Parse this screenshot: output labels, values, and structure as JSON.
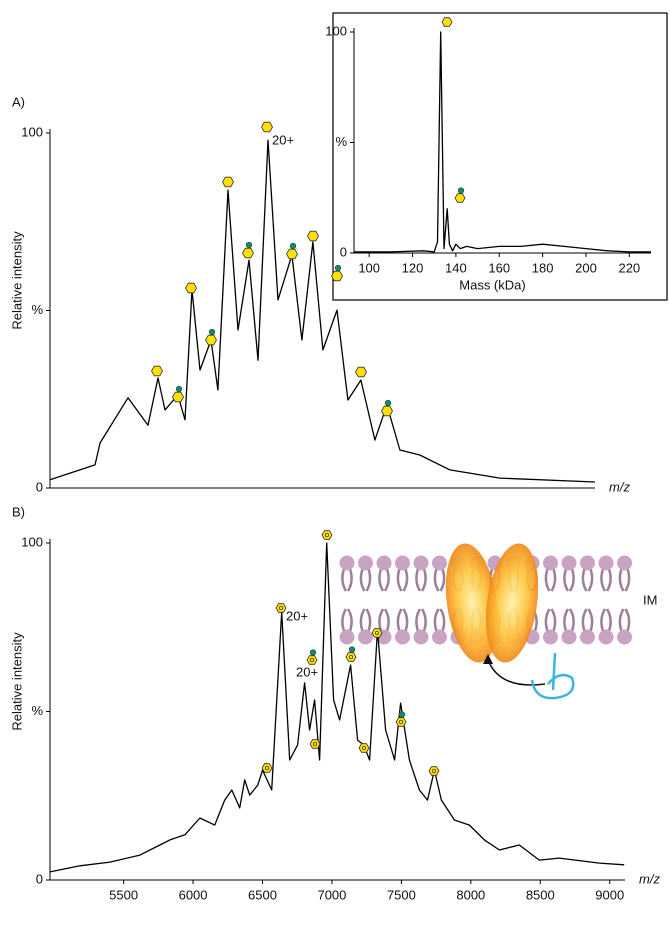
{
  "chart_data": [
    {
      "type": "line",
      "panel_label": "A)",
      "ylabel": "Relative intensity",
      "xlabel": "m/z",
      "annotations": [
        "20+"
      ],
      "xlim": [
        4970,
        8890
      ],
      "ylim": [
        0,
        100
      ],
      "yticks": [
        0,
        {
          "value": 50,
          "label": "%"
        },
        100
      ],
      "color": "#000000",
      "x": [
        4970,
        5294,
        5330,
        5531,
        5675,
        5747,
        5797,
        5890,
        5941,
        5991,
        6049,
        6128,
        6178,
        6250,
        6322,
        6401,
        6466,
        6538,
        6610,
        6710,
        6782,
        6861,
        6933,
        7034,
        7113,
        7206,
        7307,
        7393,
        7487,
        7630,
        7846,
        8206,
        8890
      ],
      "values": [
        2.3,
        6.5,
        12.7,
        25.4,
        17.7,
        31,
        22,
        26.2,
        19.2,
        55.8,
        33.2,
        41.7,
        27.6,
        83.9,
        44.5,
        64.2,
        36,
        98,
        53,
        65.6,
        41.7,
        69.3,
        38.9,
        50.1,
        24.8,
        30.4,
        13.5,
        23.4,
        10.7,
        9.3,
        5.1,
        2.8,
        1.7
      ]
    },
    {
      "type": "line",
      "panel_label": "B)",
      "ylabel": "Relative intensity",
      "xlabel": "m/z",
      "annotations": [
        "20+",
        "20+",
        "IM"
      ],
      "xlim": [
        4970,
        9110
      ],
      "ylim": [
        0,
        100
      ],
      "xticks": [
        5500,
        6000,
        6500,
        7000,
        7500,
        8000,
        8500,
        9000
      ],
      "yticks": [
        0,
        {
          "value": 50,
          "label": "%"
        },
        100
      ],
      "color": "#000000",
      "x": [
        4970,
        5186,
        5401,
        5617,
        5761,
        5833,
        5941,
        6049,
        6156,
        6228,
        6279,
        6336,
        6372,
        6408,
        6466,
        6501,
        6566,
        6638,
        6696,
        6753,
        6803,
        6839,
        6875,
        6911,
        6962,
        7012,
        7055,
        7134,
        7185,
        7228,
        7271,
        7328,
        7386,
        7451,
        7494,
        7558,
        7630,
        7688,
        7738,
        7788,
        7882,
        7990,
        8098,
        8206,
        8349,
        8493,
        8637,
        8925,
        9104
      ],
      "values": [
        2.4,
        4.2,
        5.3,
        7.4,
        10.4,
        11.9,
        13.4,
        18.4,
        16.3,
        23.7,
        26.7,
        21.4,
        29.7,
        25.2,
        28.2,
        32.6,
        26.7,
        79.5,
        35.6,
        40.1,
        58.5,
        44.5,
        53.4,
        35.6,
        100,
        53.4,
        47.5,
        63.8,
        41.5,
        40.1,
        35.6,
        74.2,
        44.5,
        35.6,
        52.5,
        35.6,
        26.7,
        23.7,
        32.6,
        23.7,
        17.8,
        16.3,
        11.9,
        8.9,
        10.4,
        5.9,
        6.5,
        5,
        4.5
      ]
    },
    {
      "type": "line",
      "xlabel": "Mass (kDa)",
      "xlim": [
        93,
        230
      ],
      "ylim": [
        0,
        100
      ],
      "xticks": [
        100,
        120,
        140,
        160,
        180,
        200,
        220
      ],
      "yticks": [
        0,
        {
          "value": 50,
          "label": "%"
        },
        100
      ],
      "color": "#000000",
      "x": [
        93,
        110,
        125,
        130,
        131.5,
        133,
        134.5,
        136,
        137,
        138.5,
        140,
        142,
        145,
        150,
        160,
        170,
        180,
        190,
        200,
        210,
        220,
        230
      ],
      "values": [
        0.5,
        0.5,
        1,
        0.5,
        5,
        100,
        2,
        20,
        4,
        1,
        4,
        2,
        3,
        2,
        3,
        3,
        4,
        3,
        2,
        1,
        0.5,
        0.5
      ]
    }
  ]
}
